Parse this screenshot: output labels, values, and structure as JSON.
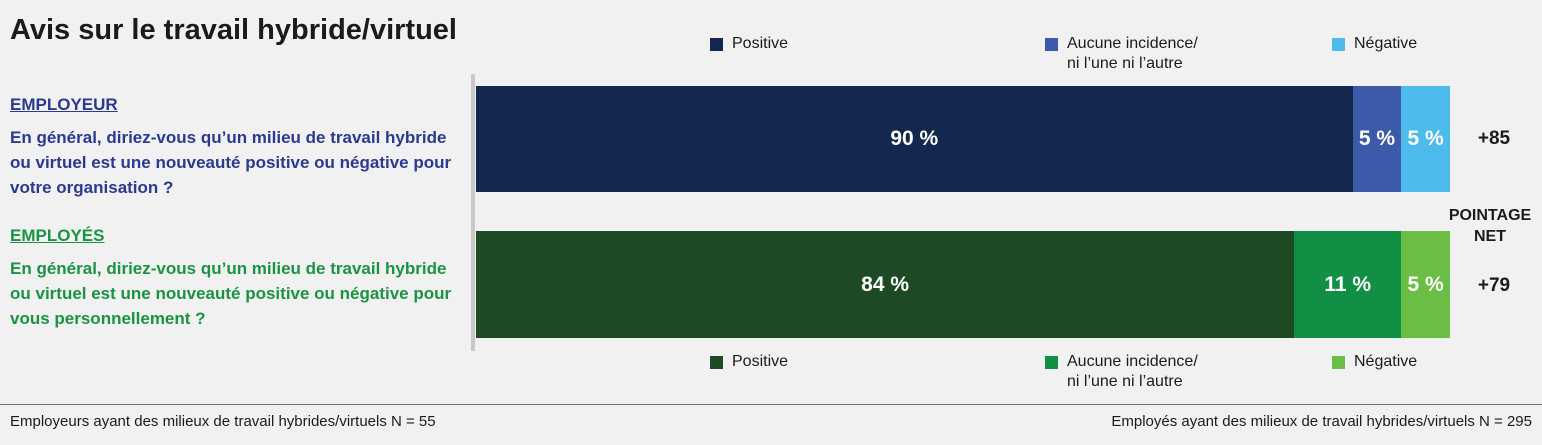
{
  "title": "Avis sur le travail hybride/virtuel",
  "legend_top": [
    {
      "label": "Positive",
      "color": "#14284f"
    },
    {
      "label": "Aucune incidence/\nni l’une ni l’autre",
      "color": "#3d5aaa"
    },
    {
      "label": "Négative",
      "color": "#4dbcec"
    }
  ],
  "legend_bottom": [
    {
      "label": "Positive",
      "color": "#1d4a24"
    },
    {
      "label": "Aucune incidence/\nni l’une ni l’autre",
      "color": "#118f45"
    },
    {
      "label": "Négative",
      "color": "#6abd45"
    }
  ],
  "employer": {
    "header": "EMPLOYEUR",
    "question": "En général, diriez-vous qu’un milieu de travail hybride ou virtuel est une nouveauté positive ou négative pour votre organisation ?"
  },
  "employees": {
    "header": "EMPLOYÉS",
    "question": "En général, diriez-vous qu’un milieu de travail hybride ou virtuel est une nouveauté positive ou négative pour vous personnellement ?"
  },
  "net_score_label": "POINTAGE\nNET",
  "footer": {
    "left": "Employeurs ayant des milieux de travail hybrides/virtuels N = 55",
    "right": "Employés ayant des milieux de travail hybrides/virtuels N = 295"
  },
  "chart_data": {
    "type": "bar",
    "orientation": "horizontal",
    "stacked": true,
    "categories": [
      "EMPLOYEUR",
      "EMPLOYÉS"
    ],
    "series": [
      {
        "name": "Positive",
        "values": [
          90,
          84
        ],
        "labels": [
          "90 %",
          "84 %"
        ],
        "colors": [
          "#14284f",
          "#1d4a24"
        ]
      },
      {
        "name": "Aucune incidence/ni l’une ni l’autre",
        "values": [
          5,
          11
        ],
        "labels": [
          "5 %",
          "11 %"
        ],
        "colors": [
          "#3d5aaa",
          "#118f45"
        ]
      },
      {
        "name": "Négative",
        "values": [
          5,
          5
        ],
        "labels": [
          "5 %",
          "5 %"
        ],
        "colors": [
          "#4dbcec",
          "#6abd45"
        ]
      }
    ],
    "net_scores": [
      "+85",
      "+79"
    ]
  }
}
